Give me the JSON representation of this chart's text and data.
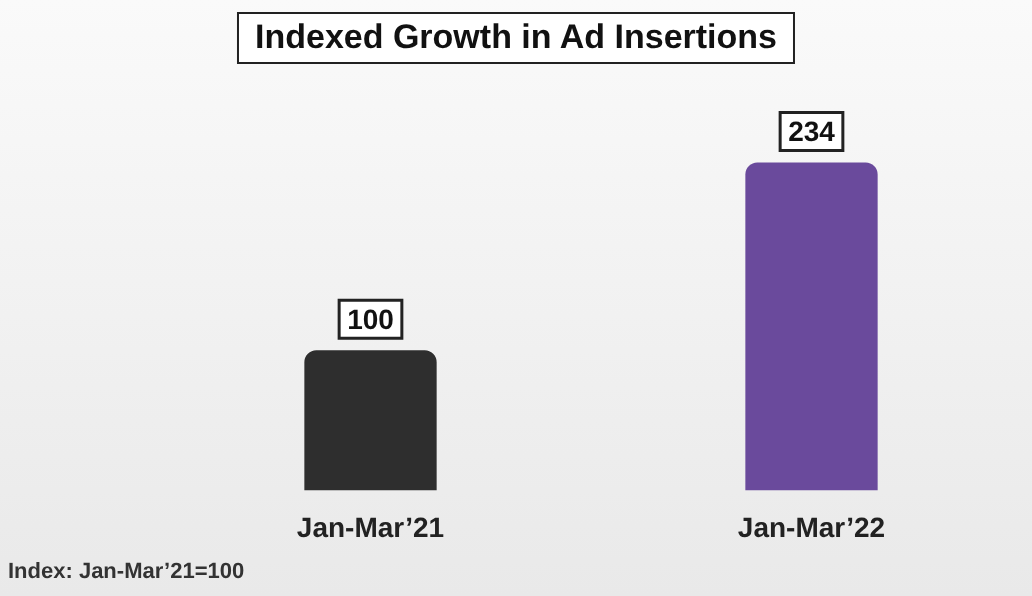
{
  "chart_data": {
    "type": "bar",
    "title": "Indexed Growth in Ad Insertions",
    "categories": [
      "Jan-Mar’21",
      "Jan-Mar’22"
    ],
    "values": [
      100,
      234
    ],
    "colors": [
      "#2e2e2e",
      "#6a4a9c"
    ],
    "data_labels": true,
    "grid": false,
    "annotations": [
      "Index: Jan-Mar’21=100"
    ]
  }
}
